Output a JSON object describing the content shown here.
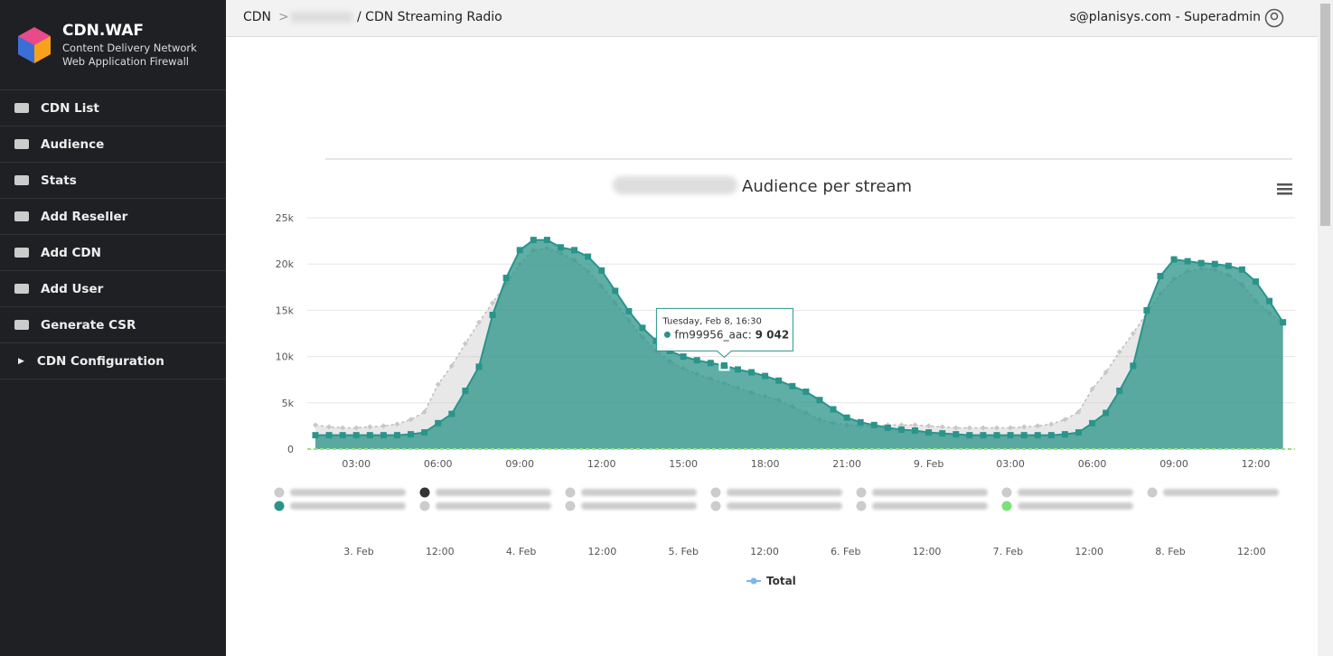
{
  "brand": {
    "name": "CDN.WAF",
    "line1": "Content Delivery Network",
    "line2": "Web Application Firewall"
  },
  "menu": [
    "CDN List",
    "Audience",
    "Stats",
    "Add Reseller",
    "Add CDN",
    "Add User",
    "Generate CSR",
    "CDN Configuration"
  ],
  "header": {
    "crumb": "CDN",
    "page": "/ CDN Streaming Radio",
    "user": "s@planisys.com - Superadmin"
  },
  "chart_data": {
    "type": "area",
    "title": "Audience per stream",
    "categories": [
      null,
      null,
      null,
      "03:00",
      null,
      null,
      null,
      null,
      null,
      "06:00",
      null,
      null,
      null,
      null,
      null,
      "09:00",
      null,
      null,
      null,
      null,
      null,
      "12:00",
      null,
      null,
      null,
      null,
      null,
      "15:00",
      null,
      null,
      null,
      null,
      null,
      "18:00",
      null,
      null,
      null,
      null,
      null,
      "21:00",
      null,
      null,
      null,
      null,
      null,
      "9. Feb",
      null,
      null,
      null,
      null,
      null,
      "03:00",
      null,
      null,
      null,
      null,
      null,
      "06:00",
      null,
      null,
      null,
      null,
      null,
      "09:00",
      null,
      null,
      null,
      null,
      null,
      "12:00",
      null,
      null
    ],
    "series": [
      {
        "color": "#bdbdbd",
        "values": [
          2600,
          2400,
          2300,
          2300,
          2400,
          2500,
          2700,
          3200,
          4000,
          7000,
          9000,
          11400,
          13700,
          15800,
          17900,
          20000,
          21500,
          21700,
          21200,
          20400,
          19200,
          17600,
          15800,
          13900,
          12100,
          10600,
          9500,
          8700,
          8100,
          7600,
          7100,
          6600,
          6100,
          5700,
          5300,
          4600,
          3900,
          3200,
          2800,
          2600,
          2500,
          2500,
          2600,
          2600,
          2600,
          2500,
          2400,
          2300,
          2300,
          2300,
          2300,
          2300,
          2400,
          2500,
          2700,
          3200,
          4000,
          6500,
          8300,
          10500,
          12500,
          14700,
          16800,
          18400,
          19200,
          19500,
          19400,
          18800,
          17800,
          16000,
          14700,
          13600
        ]
      },
      {
        "name": "fm99956_aac",
        "color": "#2a948a",
        "values": [
          1500,
          1500,
          1500,
          1500,
          1500,
          1500,
          1500,
          1600,
          1800,
          2800,
          3800,
          6300,
          8900,
          14500,
          18500,
          21500,
          22600,
          22600,
          21800,
          21500,
          20800,
          19300,
          17100,
          14900,
          13100,
          11700,
          10600,
          10000,
          9600,
          9300,
          9042,
          8600,
          8300,
          7900,
          7400,
          6800,
          6200,
          5300,
          4300,
          3400,
          2900,
          2600,
          2300,
          2100,
          2000,
          1800,
          1700,
          1600,
          1500,
          1500,
          1500,
          1500,
          1500,
          1500,
          1500,
          1600,
          1800,
          2800,
          3900,
          6300,
          9000,
          15000,
          18700,
          20500,
          20300,
          20100,
          20000,
          19800,
          19400,
          18100,
          16000,
          13700
        ]
      }
    ],
    "ylim": [
      0,
      25000
    ],
    "yticks": [
      0,
      {
        "value": 5000,
        "label": "5k"
      },
      {
        "value": 10000,
        "label": "10k"
      },
      {
        "value": 15000,
        "label": "15k"
      },
      {
        "value": 20000,
        "label": "20k"
      },
      {
        "value": 25000,
        "label": "25k"
      }
    ],
    "grid": true,
    "tooltip": {
      "index": 30,
      "date": "Tuesday, Feb 8, 16:30",
      "value_label": "9 042"
    }
  },
  "navigator": {
    "labels": [
      "3. Feb",
      "12:00",
      "4. Feb",
      "12:00",
      "5. Feb",
      "12:00",
      "6. Feb",
      "12:00",
      "7. Feb",
      "12:00",
      "8. Feb",
      "12:00"
    ],
    "legend": "Total"
  }
}
